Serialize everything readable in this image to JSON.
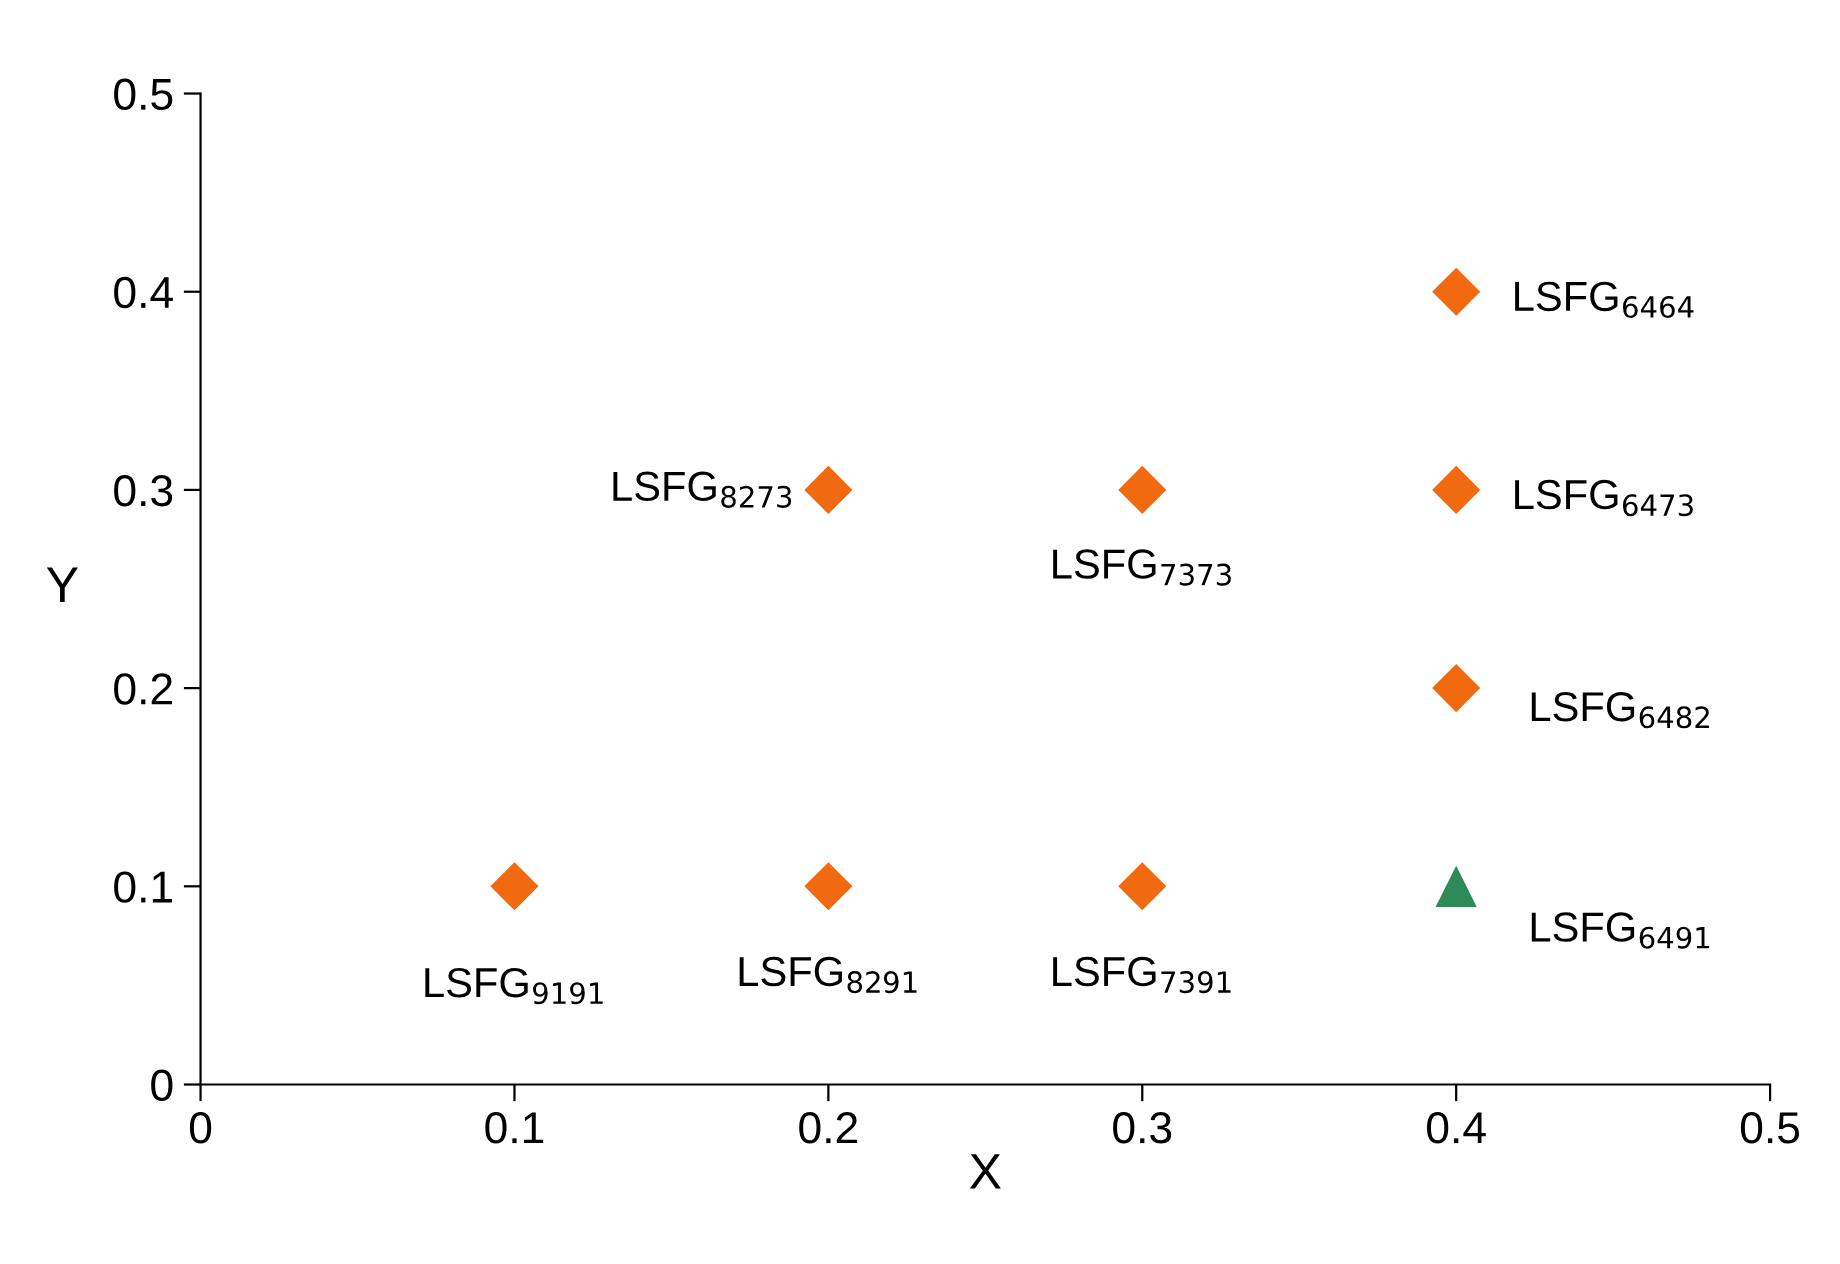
{
  "chart_data": {
    "type": "scatter",
    "xlabel": "X",
    "ylabel": "Y",
    "series": [
      {
        "color": "#f26a10",
        "marker": "diamond",
        "x": [
          0.1,
          0.2,
          0.2,
          0.3,
          0.3,
          0.4,
          0.4,
          0.4
        ],
        "values": [
          0.1,
          0.1,
          0.3,
          0.1,
          0.3,
          0.2,
          0.3,
          0.4
        ]
      },
      {
        "color": "#2e8b57",
        "marker": "triangle",
        "x": [
          0.4
        ],
        "values": [
          0.1
        ]
      }
    ],
    "xlim": [
      0,
      0.5
    ],
    "xticks": [
      0,
      0.1,
      0.2,
      0.3,
      0.4,
      0.5
    ],
    "ylim": [
      0,
      0.5
    ],
    "yticks": [
      0,
      0.1,
      0.2,
      0.3,
      0.4,
      0.5
    ],
    "grid": false,
    "legend": false,
    "annotations": [
      {
        "text": "LSFG$_{6464}$",
        "x": 0.4,
        "y": 0.4
      },
      {
        "text": "LSFG$_{8273}$",
        "x": 0.2,
        "y": 0.3
      },
      {
        "text": "LSFG$_{7373}$",
        "x": 0.3,
        "y": 0.3
      },
      {
        "text": "LSFG$_{6473}$",
        "x": 0.4,
        "y": 0.3
      },
      {
        "text": "LSFG$_{6482}$",
        "x": 0.4,
        "y": 0.2
      },
      {
        "text": "LSFG$_{6491}$",
        "x": 0.4,
        "y": 0.1
      },
      {
        "text": "LSFG$_{9191}$",
        "x": 0.1,
        "y": 0.1
      },
      {
        "text": "LSFG$_{8291}$",
        "x": 0.2,
        "y": 0.1
      },
      {
        "text": "LSFG$_{7391}$",
        "x": 0.3,
        "y": 0.1
      }
    ]
  }
}
